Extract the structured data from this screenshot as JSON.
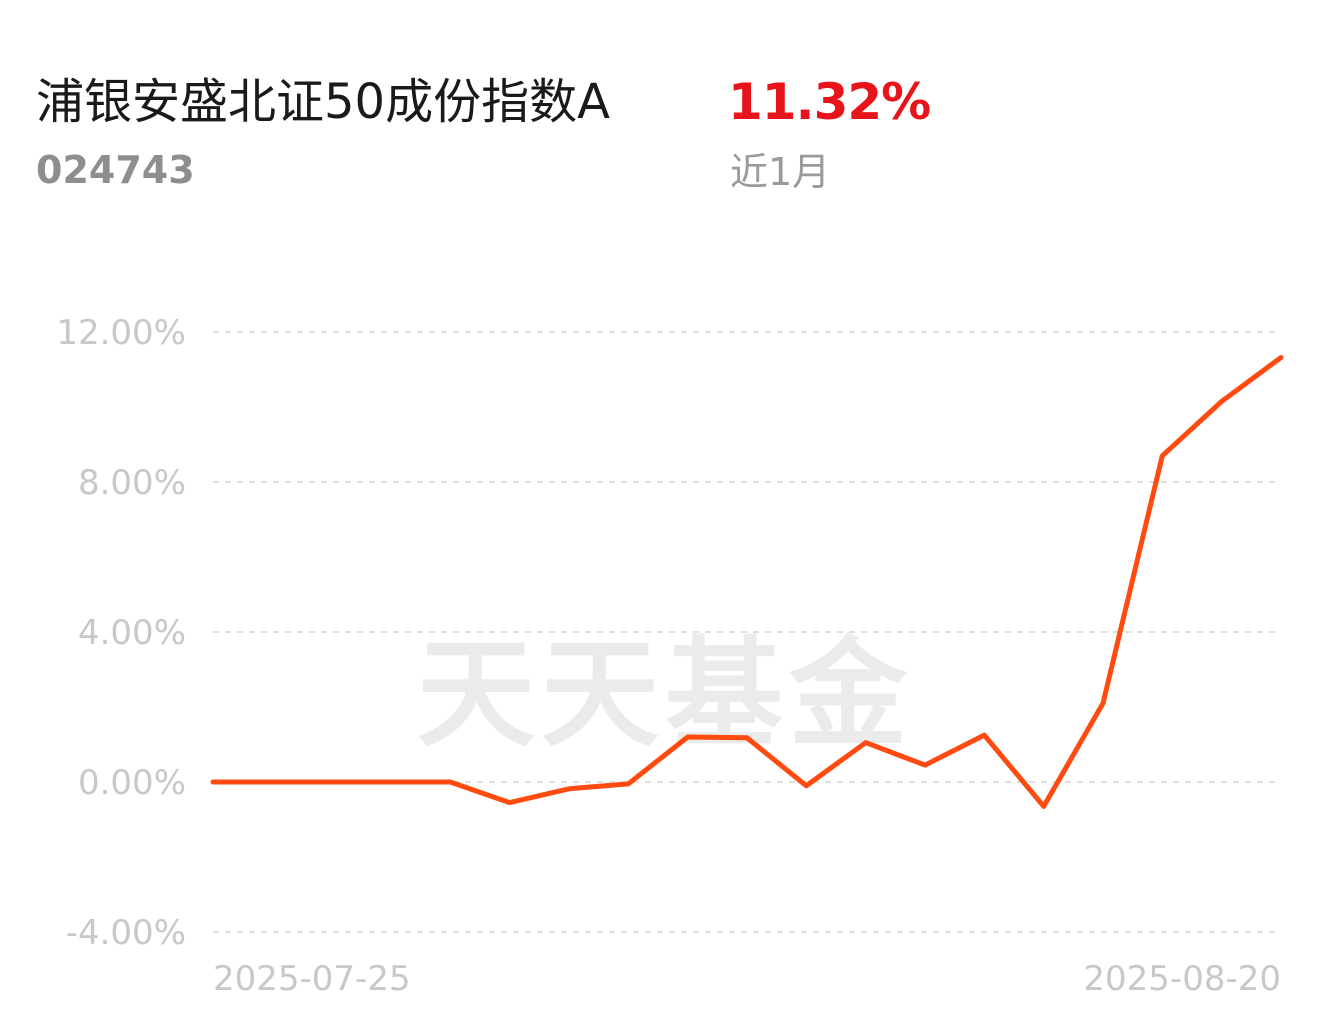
{
  "header": {
    "fund_name": "浦银安盛北证50成份指数A",
    "fund_code": "024743",
    "return_value": "11.32%",
    "return_period": "近1月"
  },
  "watermark": "天天基金",
  "colors": {
    "line": "#ff4a10",
    "return_value": "#e8141b",
    "grid": "#dedede",
    "tick_label": "#c8c8c8"
  },
  "chart_data": {
    "type": "line",
    "x_tick_labels": [
      "2025-07-25",
      "2025-08-20"
    ],
    "y_tick_labels": [
      "12.00%",
      "8.00%",
      "4.00%",
      "0.00%",
      "-4.00%"
    ],
    "y_ticks": [
      12,
      8,
      4,
      0,
      -4
    ],
    "ylim": [
      -4,
      12
    ],
    "grid": true,
    "grid_style": "dashed",
    "series": [
      {
        "values": [
          0,
          0,
          0,
          0,
          0,
          -0.55,
          -0.18,
          -0.05,
          1.2,
          1.18,
          -0.1,
          1.05,
          0.45,
          1.25,
          -0.65,
          2.1,
          8.7,
          10.15,
          11.32
        ]
      }
    ]
  }
}
